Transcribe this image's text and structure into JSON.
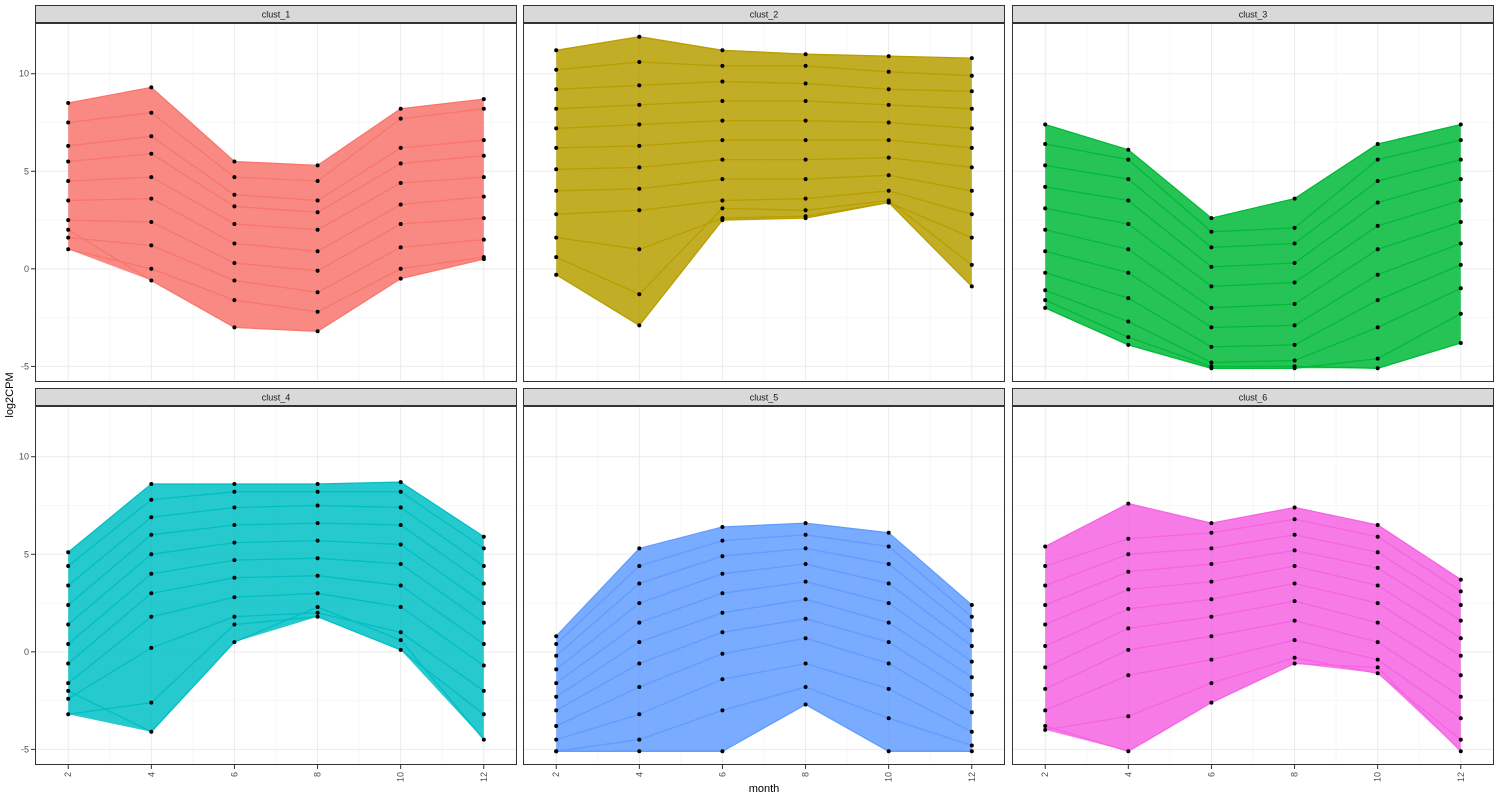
{
  "chart_data": {
    "type": "line",
    "xlabel": "month",
    "ylabel": "log2CPM",
    "x": [
      2,
      4,
      6,
      8,
      10,
      12
    ],
    "x_ticks": [
      "2",
      "4",
      "6",
      "8",
      "10",
      "12"
    ],
    "y_ticks": [
      "-5",
      "0",
      "5",
      "10"
    ],
    "y_tick_values": [
      -5,
      0,
      5,
      10
    ],
    "xlim": [
      1.2,
      12.8
    ],
    "ylim": [
      -5.8,
      12.6
    ],
    "grid": true,
    "layout": "facet grid, 2 rows x 3 columns",
    "point_color": "#000000",
    "panels": [
      {
        "strip": "clust_1",
        "color": "#F8766D",
        "series": [
          {
            "values": [
              8.5,
              9.3,
              5.5,
              5.3,
              8.2,
              8.7
            ]
          },
          {
            "values": [
              7.5,
              8.0,
              4.7,
              4.5,
              7.7,
              8.2
            ]
          },
          {
            "values": [
              6.3,
              6.8,
              3.8,
              3.5,
              6.2,
              6.6
            ]
          },
          {
            "values": [
              5.5,
              5.9,
              3.2,
              2.9,
              5.4,
              5.8
            ]
          },
          {
            "values": [
              4.5,
              4.7,
              2.3,
              2.0,
              4.4,
              4.7
            ]
          },
          {
            "values": [
              3.5,
              3.6,
              1.3,
              0.9,
              3.3,
              3.7
            ]
          },
          {
            "values": [
              2.5,
              2.4,
              0.3,
              -0.1,
              2.3,
              2.6
            ]
          },
          {
            "values": [
              1.6,
              1.2,
              -0.6,
              -1.2,
              1.1,
              1.5
            ]
          },
          {
            "values": [
              1.0,
              0.0,
              -1.6,
              -2.2,
              0.0,
              0.6
            ]
          },
          {
            "values": [
              2.0,
              -0.6,
              -3.0,
              -3.2,
              -0.5,
              0.5
            ]
          }
        ]
      },
      {
        "strip": "clust_2",
        "color": "#B79F00",
        "series": [
          {
            "values": [
              11.2,
              11.9,
              11.2,
              11.0,
              10.9,
              10.8
            ]
          },
          {
            "values": [
              10.2,
              10.6,
              10.4,
              10.4,
              10.1,
              9.9
            ]
          },
          {
            "values": [
              9.2,
              9.4,
              9.6,
              9.5,
              9.2,
              9.1
            ]
          },
          {
            "values": [
              8.2,
              8.4,
              8.6,
              8.6,
              8.4,
              8.2
            ]
          },
          {
            "values": [
              7.2,
              7.4,
              7.6,
              7.6,
              7.5,
              7.2
            ]
          },
          {
            "values": [
              6.2,
              6.3,
              6.6,
              6.6,
              6.6,
              6.2
            ]
          },
          {
            "values": [
              5.1,
              5.2,
              5.6,
              5.6,
              5.7,
              5.2
            ]
          },
          {
            "values": [
              4.0,
              4.1,
              4.6,
              4.6,
              4.8,
              4.0
            ]
          },
          {
            "values": [
              2.8,
              3.0,
              3.5,
              3.6,
              4.0,
              2.8
            ]
          },
          {
            "values": [
              1.6,
              1.0,
              2.6,
              2.7,
              3.4,
              1.6
            ]
          },
          {
            "values": [
              0.6,
              -1.3,
              3.1,
              3.0,
              3.5,
              0.2
            ]
          },
          {
            "values": [
              -0.3,
              -2.9,
              2.5,
              2.6,
              3.4,
              -0.9
            ]
          }
        ]
      },
      {
        "strip": "clust_3",
        "color": "#00BA38",
        "series": [
          {
            "values": [
              7.4,
              6.1,
              2.6,
              3.6,
              6.4,
              7.4
            ]
          },
          {
            "values": [
              6.4,
              5.6,
              1.9,
              2.1,
              5.6,
              6.6
            ]
          },
          {
            "values": [
              5.3,
              4.6,
              1.1,
              1.3,
              4.5,
              5.6
            ]
          },
          {
            "values": [
              4.2,
              3.5,
              0.1,
              0.3,
              3.4,
              4.6
            ]
          },
          {
            "values": [
              3.1,
              2.3,
              -0.9,
              -0.7,
              2.2,
              3.5
            ]
          },
          {
            "values": [
              2.0,
              1.0,
              -2.0,
              -1.8,
              1.0,
              2.4
            ]
          },
          {
            "values": [
              0.9,
              -0.2,
              -3.0,
              -2.9,
              -0.3,
              1.3
            ]
          },
          {
            "values": [
              -0.2,
              -1.5,
              -4.0,
              -3.9,
              -1.6,
              0.2
            ]
          },
          {
            "values": [
              -1.1,
              -2.7,
              -4.8,
              -4.7,
              -3.0,
              -1.0
            ]
          },
          {
            "values": [
              -2.0,
              -3.9,
              -5.1,
              -5.1,
              -4.6,
              -2.3
            ]
          },
          {
            "values": [
              -1.6,
              -3.5,
              -5.0,
              -5.0,
              -5.1,
              -3.8
            ]
          }
        ]
      },
      {
        "strip": "clust_4",
        "color": "#00BFC4",
        "series": [
          {
            "values": [
              5.1,
              8.6,
              8.6,
              8.6,
              8.7,
              5.9
            ]
          },
          {
            "values": [
              4.4,
              7.8,
              8.2,
              8.2,
              8.2,
              5.3
            ]
          },
          {
            "values": [
              3.4,
              6.9,
              7.4,
              7.5,
              7.4,
              4.4
            ]
          },
          {
            "values": [
              2.4,
              6.0,
              6.5,
              6.6,
              6.5,
              3.5
            ]
          },
          {
            "values": [
              1.4,
              5.0,
              5.6,
              5.7,
              5.5,
              2.5
            ]
          },
          {
            "values": [
              0.4,
              4.0,
              4.7,
              4.8,
              4.5,
              1.5
            ]
          },
          {
            "values": [
              -0.6,
              3.0,
              3.8,
              3.9,
              3.4,
              0.4
            ]
          },
          {
            "values": [
              -1.6,
              1.8,
              2.8,
              3.0,
              2.3,
              -0.7
            ]
          },
          {
            "values": [
              -2.4,
              0.2,
              1.8,
              2.0,
              1.0,
              -2.0
            ]
          },
          {
            "values": [
              -3.2,
              -2.6,
              1.4,
              1.8,
              0.1,
              -3.2
            ]
          },
          {
            "values": [
              -2.0,
              -4.1,
              0.5,
              2.3,
              0.6,
              -4.5
            ]
          }
        ]
      },
      {
        "strip": "clust_5",
        "color": "#619CFF",
        "series": [
          {
            "values": [
              0.8,
              5.3,
              6.4,
              6.6,
              6.1,
              2.4
            ]
          },
          {
            "values": [
              0.4,
              4.4,
              5.7,
              6.0,
              5.4,
              1.8
            ]
          },
          {
            "values": [
              -0.2,
              3.5,
              4.9,
              5.3,
              4.5,
              1.1
            ]
          },
          {
            "values": [
              -0.9,
              2.5,
              4.0,
              4.5,
              3.5,
              0.3
            ]
          },
          {
            "values": [
              -1.6,
              1.5,
              3.0,
              3.6,
              2.5,
              -0.5
            ]
          },
          {
            "values": [
              -2.3,
              0.5,
              2.0,
              2.7,
              1.5,
              -1.3
            ]
          },
          {
            "values": [
              -3.0,
              -0.6,
              1.0,
              1.7,
              0.5,
              -2.2
            ]
          },
          {
            "values": [
              -3.8,
              -1.8,
              -0.1,
              0.7,
              -0.6,
              -3.1
            ]
          },
          {
            "values": [
              -4.5,
              -3.2,
              -1.4,
              -0.6,
              -1.9,
              -4.1
            ]
          },
          {
            "values": [
              -5.1,
              -4.5,
              -3.0,
              -1.8,
              -3.4,
              -4.8
            ]
          },
          {
            "values": [
              -5.1,
              -5.1,
              -5.1,
              -2.7,
              -5.1,
              -5.1
            ]
          }
        ]
      },
      {
        "strip": "clust_6",
        "color": "#F564E3",
        "series": [
          {
            "values": [
              5.4,
              7.6,
              6.6,
              7.4,
              6.5,
              3.7
            ]
          },
          {
            "values": [
              4.4,
              5.8,
              6.1,
              6.8,
              5.9,
              3.1
            ]
          },
          {
            "values": [
              3.4,
              5.0,
              5.3,
              6.0,
              5.1,
              2.4
            ]
          },
          {
            "values": [
              2.4,
              4.1,
              4.5,
              5.2,
              4.3,
              1.6
            ]
          },
          {
            "values": [
              1.4,
              3.2,
              3.6,
              4.4,
              3.4,
              0.7
            ]
          },
          {
            "values": [
              0.3,
              2.2,
              2.7,
              3.5,
              2.5,
              -0.2
            ]
          },
          {
            "values": [
              -0.8,
              1.2,
              1.8,
              2.6,
              1.5,
              -1.2
            ]
          },
          {
            "values": [
              -1.9,
              0.1,
              0.8,
              1.6,
              0.5,
              -2.3
            ]
          },
          {
            "values": [
              -3.0,
              -1.2,
              -0.4,
              0.6,
              -0.4,
              -3.4
            ]
          },
          {
            "values": [
              -4.0,
              -3.3,
              -1.6,
              -0.3,
              -1.1,
              -4.5
            ]
          },
          {
            "values": [
              -3.8,
              -5.1,
              -2.6,
              -0.6,
              -0.8,
              -5.1
            ]
          }
        ]
      }
    ]
  }
}
